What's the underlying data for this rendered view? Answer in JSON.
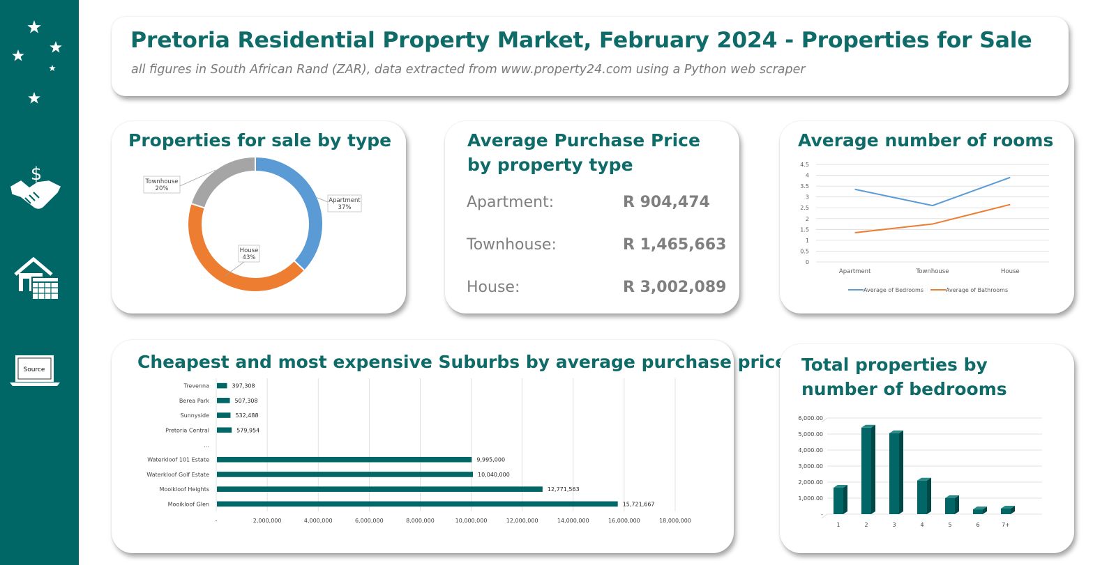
{
  "header": {
    "title": "Pretoria Residential Property Market, February 2024 - Properties for Sale",
    "subtitle": "all figures in South African Rand (ZAR), data extracted from www.property24.com using a Python web scraper"
  },
  "sidebar": {
    "source_label": "Source",
    "icons": [
      "stars-logo-icon",
      "handshake-dollar-icon",
      "house-calendar-icon",
      "laptop-source-icon"
    ]
  },
  "colors": {
    "teal": "#006666",
    "title_teal": "#0E6B68",
    "blue": "#5B9BD5",
    "orange": "#ED7D31",
    "gray": "#A5A5A5"
  },
  "prices": {
    "title": "Average Purchase Price by property type",
    "rows": [
      {
        "label": "Apartment:",
        "value": "R 904,474"
      },
      {
        "label": "Townhouse:",
        "value": "R 1,465,663"
      },
      {
        "label": "House:",
        "value": "R 3,002,089"
      }
    ]
  },
  "chart_data": [
    {
      "type": "pie",
      "title": "Properties for sale by type",
      "donut": true,
      "slices": [
        {
          "label": "Apartment",
          "value": 37,
          "pct": "37%",
          "color": "#5B9BD5"
        },
        {
          "label": "House",
          "value": 43,
          "pct": "43%",
          "color": "#ED7D31"
        },
        {
          "label": "Townhouse",
          "value": 20,
          "pct": "20%",
          "color": "#A5A5A5"
        }
      ]
    },
    {
      "type": "line",
      "title": "Average number of rooms",
      "categories": [
        "Apartment",
        "Townhouse",
        "House"
      ],
      "series": [
        {
          "name": "Average of Bedrooms",
          "values": [
            3.35,
            2.6,
            3.9
          ],
          "color": "#5B9BD5"
        },
        {
          "name": "Average of Bathrooms",
          "values": [
            1.35,
            1.75,
            2.65
          ],
          "color": "#ED7D31"
        }
      ],
      "ylim": [
        0,
        4.5
      ],
      "yticks": [
        "0",
        "0.5",
        "1",
        "1.5",
        "2",
        "2.5",
        "3",
        "3.5",
        "4",
        "4.5"
      ],
      "legend": "bottom",
      "grid": true
    },
    {
      "type": "bar",
      "orientation": "horizontal",
      "title": "Cheapest and most expensive Suburbs by average purchase price",
      "categories": [
        "Trevenna",
        "Berea Park",
        "Sunnyside",
        "Pretoria Central",
        "…",
        "Waterkloof 101 Estate",
        "Waterkloof Golf Estate",
        "Mooikloof Heights",
        "Mooikloof Glen"
      ],
      "values": [
        397308,
        507308,
        532488,
        579954,
        null,
        9995000,
        10040000,
        12771563,
        15721667
      ],
      "labels": [
        "397,308",
        "507,308",
        "532,488",
        "579,954",
        "",
        "9,995,000",
        "10,040,000",
        "12,771,563",
        "15,721,667"
      ],
      "xlim": [
        0,
        18000000
      ],
      "xticks": [
        "-",
        "2,000,000",
        "4,000,000",
        "6,000,000",
        "8,000,000",
        "10,000,000",
        "12,000,000",
        "14,000,000",
        "16,000,000",
        "18,000,000"
      ],
      "color": "#006666",
      "grid": true
    },
    {
      "type": "bar",
      "title": "Total properties by number of bedrooms",
      "categories": [
        "1",
        "2",
        "3",
        "4",
        "5",
        "6",
        "7+"
      ],
      "values": [
        1650,
        5400,
        5050,
        2100,
        1000,
        300,
        350
      ],
      "ylim": [
        0,
        6000
      ],
      "yticks": [
        "-",
        "1,000.00",
        "2,000.00",
        "3,000.00",
        "4,000.00",
        "5,000.00",
        "6,000.00"
      ],
      "color": "#006666",
      "style": "3d",
      "grid": true
    }
  ]
}
